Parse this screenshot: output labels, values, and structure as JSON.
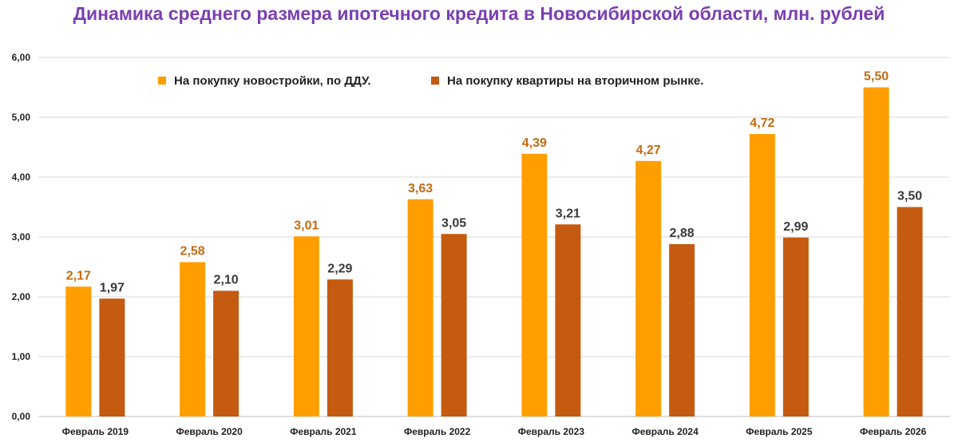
{
  "chart_data": {
    "type": "bar",
    "title": "Динамика среднего размера ипотечного кредита в Новосибирской области, млн. рублей",
    "xlabel": "",
    "ylabel": "",
    "ylim": [
      0,
      6
    ],
    "yticks": [
      "0,00",
      "1,00",
      "2,00",
      "3,00",
      "4,00",
      "5,00",
      "6,00"
    ],
    "grid": true,
    "legend_position": "top",
    "categories": [
      "Февраль 2019",
      "Февраль 2020",
      "Февраль 2021",
      "Февраль 2022",
      "Февраль 2023",
      "Февраль 2024",
      "Февраль 2025",
      "Февраль 2026"
    ],
    "series": [
      {
        "name": "На покупку новостройки, по ДДУ.",
        "color": "#ff9e00",
        "label_color": "#c46a12",
        "values": [
          2.17,
          2.58,
          3.01,
          3.63,
          4.39,
          4.27,
          4.72,
          5.5
        ],
        "labels": [
          "2,17",
          "2,58",
          "3,01",
          "3,63",
          "4,39",
          "4,27",
          "4,72",
          "5,50"
        ]
      },
      {
        "name": "На покупку квартиры на вторичном рынке.",
        "color": "#c55a11",
        "label_color": "#3a3a3a",
        "values": [
          1.97,
          2.1,
          2.29,
          3.05,
          3.21,
          2.88,
          2.99,
          3.5
        ],
        "labels": [
          "1,97",
          "2,10",
          "2,29",
          "3,05",
          "3,21",
          "2,88",
          "2,99",
          "3,50"
        ]
      }
    ]
  }
}
